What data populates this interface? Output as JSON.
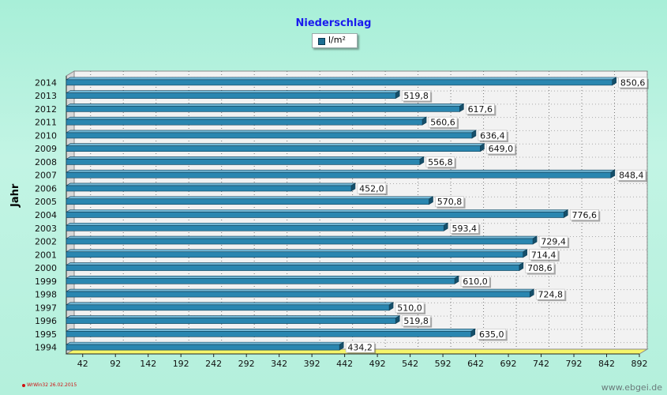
{
  "chart_data": {
    "type": "bar",
    "orientation": "horizontal",
    "title": "Niederschlag",
    "ylabel": "Jahr",
    "xlabel": "",
    "legend": "top-center",
    "grid": true,
    "xlim": [
      17,
      892
    ],
    "xticks": [
      42,
      92,
      142,
      192,
      242,
      292,
      342,
      392,
      442,
      492,
      542,
      592,
      642,
      692,
      742,
      792,
      842,
      892
    ],
    "categories": [
      "1994",
      "1995",
      "1996",
      "1997",
      "1998",
      "1999",
      "2000",
      "2001",
      "2002",
      "2003",
      "2004",
      "2005",
      "2006",
      "2007",
      "2008",
      "2009",
      "2010",
      "2011",
      "2012",
      "2013",
      "2014"
    ],
    "series": [
      {
        "name": "l/m²",
        "values": [
          434.2,
          635.0,
          519.8,
          510.0,
          724.8,
          610.0,
          708.6,
          714.4,
          729.4,
          593.4,
          776.6,
          570.8,
          452.0,
          848.4,
          556.8,
          649.0,
          636.4,
          560.6,
          617.6,
          519.8,
          850.6
        ],
        "labels": [
          "434,2",
          "635,0",
          "519,8",
          "510,0",
          "724,8",
          "610,0",
          "708,6",
          "714,4",
          "729,4",
          "593,4",
          "776,6",
          "570,8",
          "452,0",
          "848,4",
          "556,8",
          "649,0",
          "636,4",
          "560,6",
          "617,6",
          "519,8",
          "850,6"
        ],
        "color": "#2a86b0"
      }
    ]
  },
  "footer": {
    "left": "WrWin32  26.02.2015",
    "right": "www.ebgei.de"
  }
}
